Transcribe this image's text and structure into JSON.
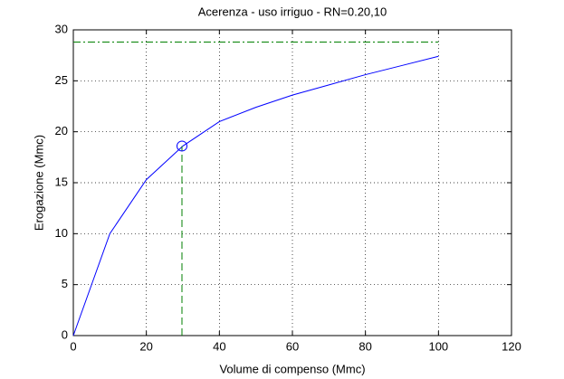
{
  "chart_data": {
    "type": "line",
    "title": "Acerenza  -  uso irriguo  -   RN=0.20,10",
    "x_label": "Volume di compenso (Mmc)",
    "y_label": "Erogazione (Mmc)",
    "xlim": [
      0,
      120
    ],
    "ylim": [
      0,
      30
    ],
    "xticks": [
      0,
      20,
      40,
      60,
      80,
      100,
      120
    ],
    "yticks": [
      0,
      5,
      10,
      15,
      20,
      25,
      30
    ],
    "grid": true,
    "series": [
      {
        "color": "#0000ff",
        "style": "solid",
        "x": [
          0,
          10,
          20,
          30,
          40,
          50,
          60,
          70,
          80,
          90,
          100
        ],
        "values": [
          0,
          10,
          15.3,
          18.6,
          21,
          22.4,
          23.6,
          24.6,
          25.6,
          26.5,
          27.4
        ]
      },
      {
        "color": "#008000",
        "style": "dash-dot",
        "x": [
          0,
          100
        ],
        "values": [
          28.8,
          28.8
        ]
      },
      {
        "color": "#008000",
        "style": "dashed",
        "x": [
          29.75,
          29.75
        ],
        "values": [
          0,
          18.6
        ]
      }
    ],
    "marker": {
      "x": 29.75,
      "y": 18.6,
      "color": "#0000ff"
    }
  }
}
